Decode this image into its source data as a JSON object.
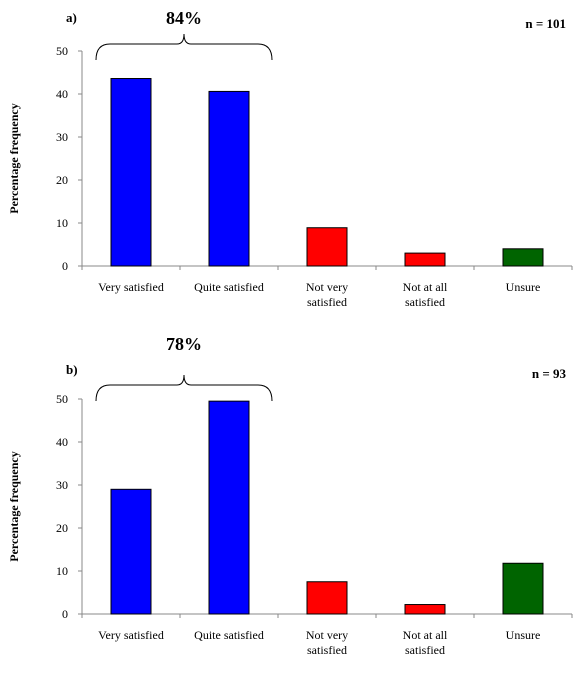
{
  "chart_data": [
    {
      "type": "bar",
      "panel_label": "a)",
      "n_label": "n = 101",
      "ylabel": "Percentage frequency",
      "xlabel": "",
      "ylim": [
        0,
        50
      ],
      "yticks": [
        "0",
        "10",
        "20",
        "30",
        "40",
        "50"
      ],
      "categories": [
        [
          "Very satisfied"
        ],
        [
          "Quite satisfied"
        ],
        [
          "Not very",
          "satisfied"
        ],
        [
          "Not at all",
          "satisfied"
        ],
        [
          "Unsure"
        ]
      ],
      "values": [
        43.6,
        40.6,
        8.9,
        3.0,
        4.0
      ],
      "bar_colors": [
        "#0000ff",
        "#0000ff",
        "#ff0000",
        "#ff0000",
        "#006400"
      ],
      "bracket": {
        "label": "84%",
        "from_category": 0,
        "to_category": 1
      },
      "grid": false
    },
    {
      "type": "bar",
      "panel_label": "b)",
      "n_label": "n = 93",
      "ylabel": "Percentage frequency",
      "xlabel": "",
      "ylim": [
        0,
        50
      ],
      "yticks": [
        "0",
        "10",
        "20",
        "30",
        "40",
        "50"
      ],
      "categories": [
        [
          "Very satisfied"
        ],
        [
          "Quite satisfied"
        ],
        [
          "Not very",
          "satisfied"
        ],
        [
          "Not at all",
          "satisfied"
        ],
        [
          "Unsure"
        ]
      ],
      "values": [
        29.0,
        49.5,
        7.5,
        2.2,
        11.8
      ],
      "bar_colors": [
        "#0000ff",
        "#0000ff",
        "#ff0000",
        "#ff0000",
        "#006400"
      ],
      "bracket": {
        "label": "78%",
        "from_category": 0,
        "to_category": 1
      },
      "grid": false
    }
  ]
}
